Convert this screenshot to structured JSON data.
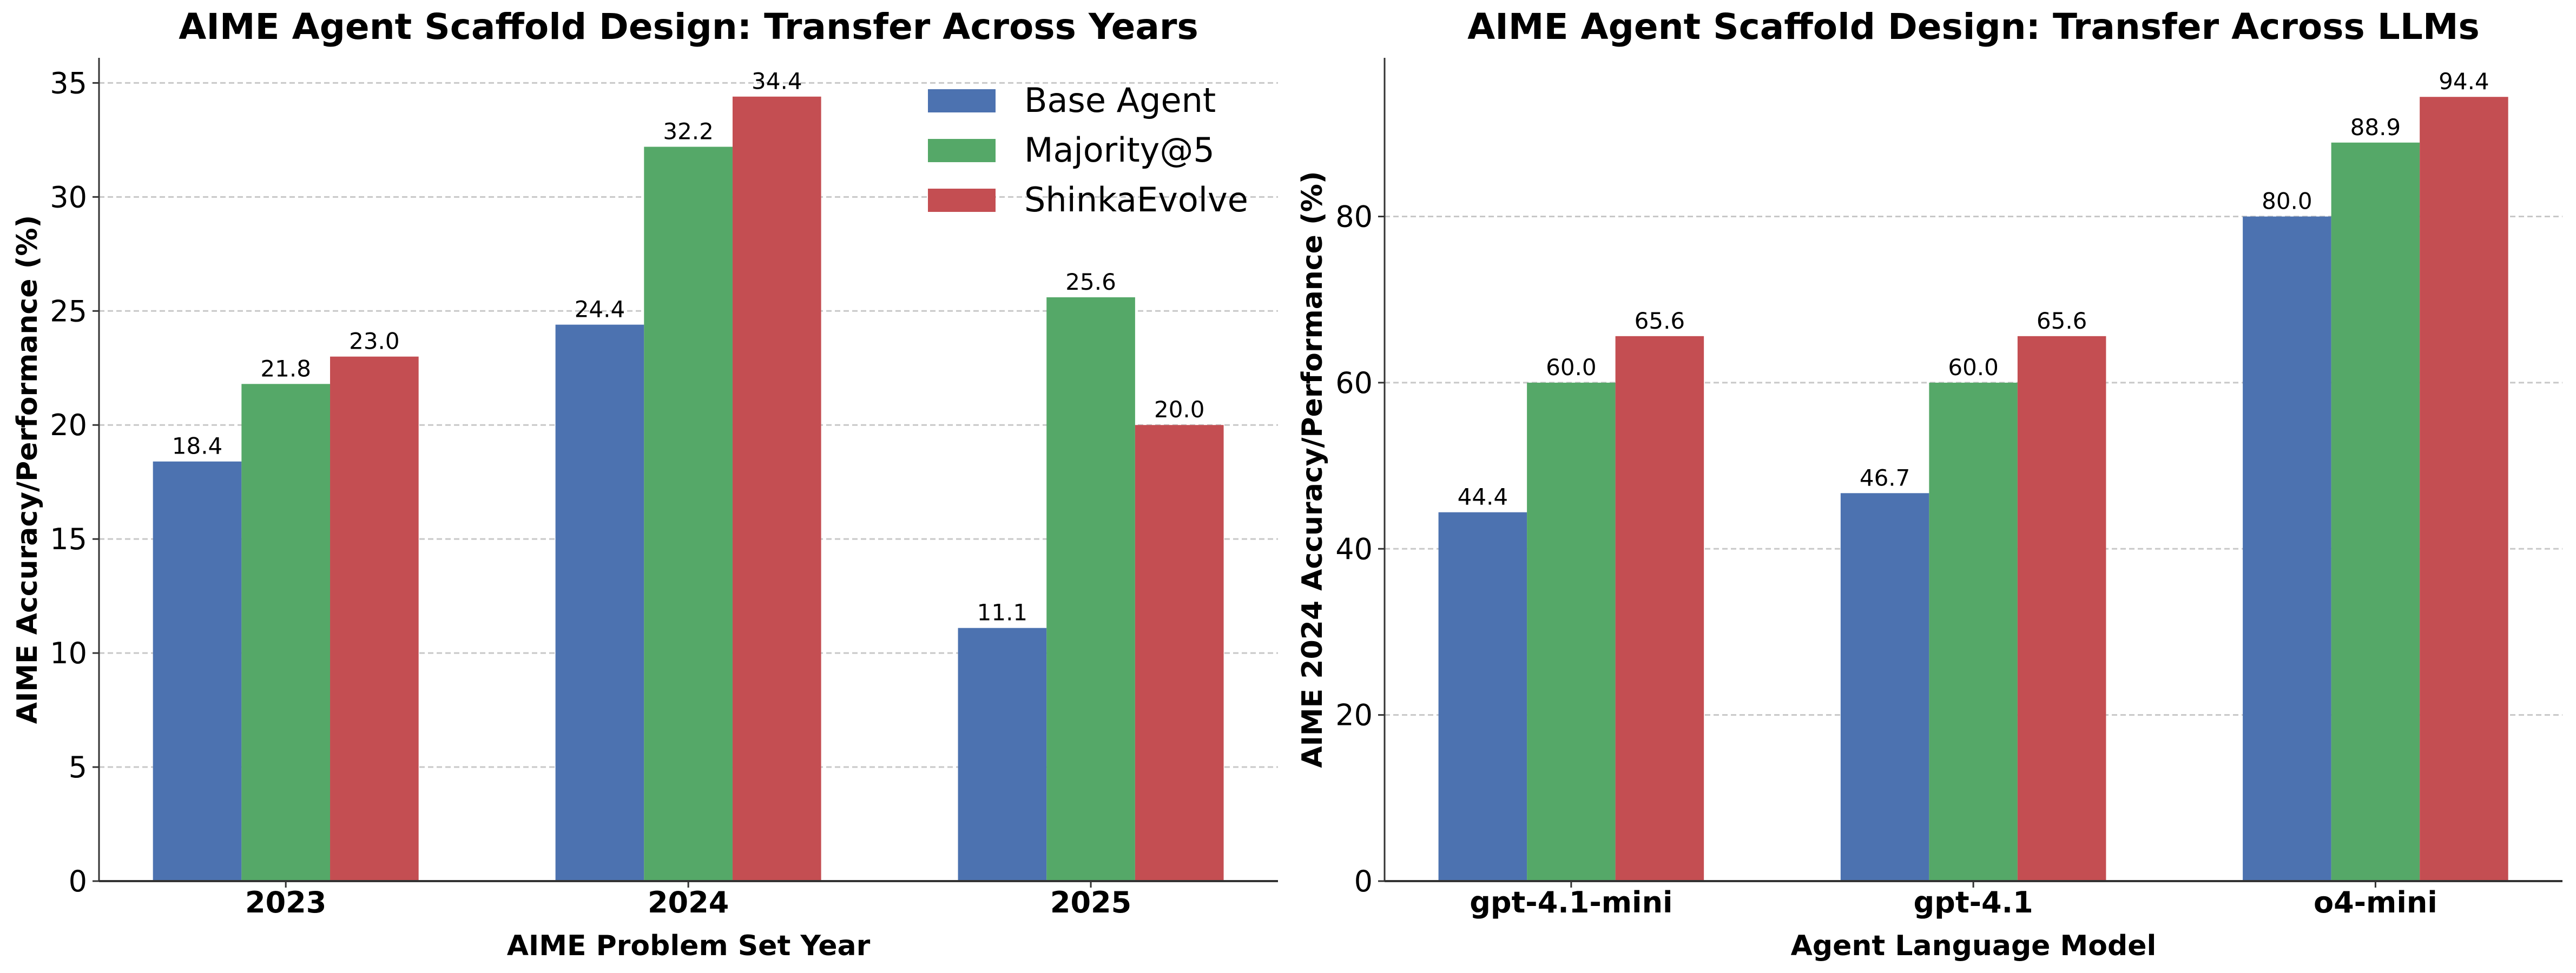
{
  "chart_data": [
    {
      "type": "bar",
      "title": "AIME Agent Scaffold Design: Transfer Across Years",
      "xlabel": "AIME Problem Set Year",
      "ylabel": "AIME Accuracy/Performance (%)",
      "categories": [
        "2023",
        "2024",
        "2025"
      ],
      "ylim": [
        0,
        36.1
      ],
      "yticks": [
        0,
        5,
        10,
        15,
        20,
        25,
        30,
        35
      ],
      "grid": "y-dashed",
      "legend": "top-right",
      "series": [
        {
          "name": "Base Agent",
          "color": "#4C72B0",
          "values": [
            18.4,
            24.4,
            11.1
          ]
        },
        {
          "name": "Majority@5",
          "color": "#55A868",
          "values": [
            21.8,
            32.2,
            25.6
          ]
        },
        {
          "name": "ShinkaEvolve",
          "color": "#C44E52",
          "values": [
            23.0,
            34.4,
            20.0
          ]
        }
      ]
    },
    {
      "type": "bar",
      "title": "AIME Agent Scaffold Design: Transfer Across LLMs",
      "xlabel": "Agent Language Model",
      "ylabel": "AIME 2024 Accuracy/Performance (%)",
      "categories": [
        "gpt-4.1-mini",
        "gpt-4.1",
        "o4-mini"
      ],
      "ylim": [
        0,
        99.1
      ],
      "yticks": [
        0,
        20,
        40,
        60,
        80
      ],
      "grid": "y-dashed",
      "legend": "none",
      "series": [
        {
          "name": "Base Agent",
          "color": "#4C72B0",
          "values": [
            44.4,
            46.7,
            80.0
          ]
        },
        {
          "name": "Majority@5",
          "color": "#55A868",
          "values": [
            60.0,
            60.0,
            88.9
          ]
        },
        {
          "name": "ShinkaEvolve",
          "color": "#C44E52",
          "values": [
            65.6,
            65.6,
            94.4
          ]
        }
      ]
    }
  ]
}
